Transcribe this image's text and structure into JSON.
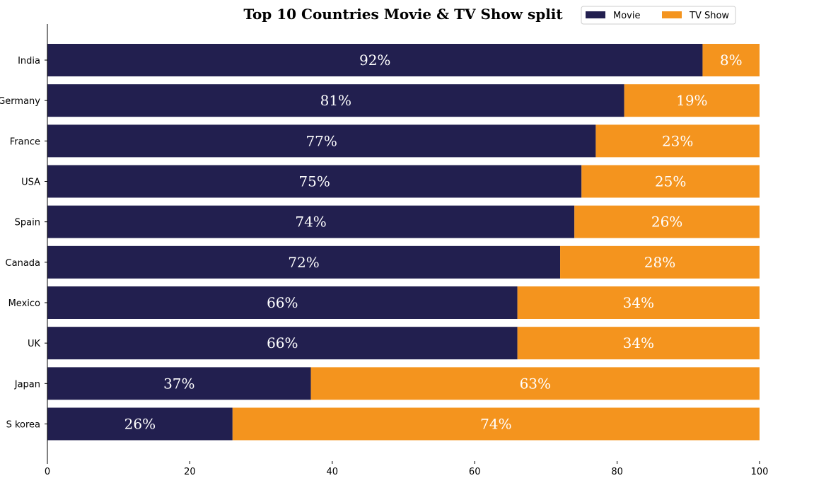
{
  "chart_data": {
    "type": "bar",
    "orientation": "horizontal",
    "stacked": true,
    "title": "Top 10 Countries Movie & TV Show split",
    "categories": [
      "India",
      "Germany",
      "France",
      "USA",
      "Spain",
      "Canada",
      "Mexico",
      "UK",
      "Japan",
      "S korea"
    ],
    "series": [
      {
        "name": "Movie",
        "color": "#221f4f",
        "values": [
          92,
          81,
          77,
          75,
          74,
          72,
          66,
          66,
          37,
          26
        ]
      },
      {
        "name": "TV Show",
        "color": "#f4941e",
        "values": [
          8,
          19,
          23,
          25,
          26,
          28,
          34,
          34,
          63,
          74
        ]
      }
    ],
    "data_labels": [
      [
        "92%",
        "81%",
        "77%",
        "75%",
        "74%",
        "72%",
        "66%",
        "66%",
        "37%",
        "26%"
      ],
      [
        "8%",
        "19%",
        "23%",
        "25%",
        "26%",
        "28%",
        "34%",
        "34%",
        "63%",
        "74%"
      ]
    ],
    "xlim": [
      0,
      100
    ],
    "xticks": [
      "0",
      "20",
      "40",
      "60",
      "80",
      "100"
    ],
    "xlabel": "",
    "ylabel": "",
    "grid": false,
    "legend": "top-right"
  }
}
